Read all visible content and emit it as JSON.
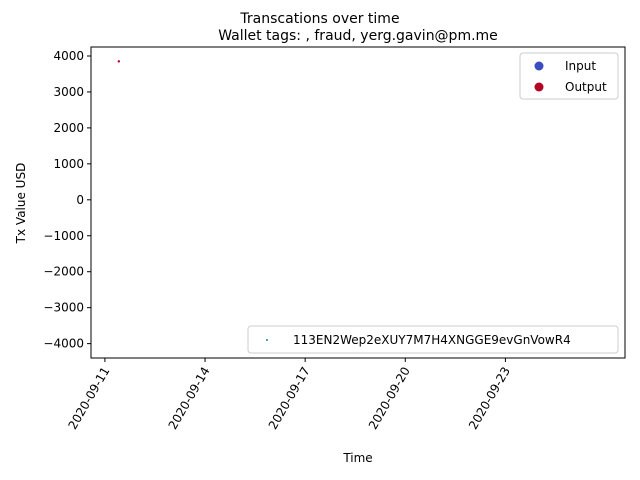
{
  "chart_data": {
    "type": "scatter",
    "suptitle": "Transcations over time",
    "title": "Wallet tags: , fraud, yerg.gavin@pm.me",
    "xlabel": "Time",
    "ylabel": "Tx Value USD",
    "x_axis": {
      "type": "date",
      "range": [
        "2020-09-10T14:00",
        "2020-09-26T14:00"
      ],
      "ticks": [
        "2020-09-11",
        "2020-09-14",
        "2020-09-17",
        "2020-09-20",
        "2020-09-23"
      ]
    },
    "y_axis": {
      "range": [
        -4400,
        4250
      ],
      "ticks": [
        4000,
        3000,
        2000,
        1000,
        0,
        -1000,
        -2000,
        -3000,
        -4000
      ],
      "tick_labels": [
        "4000",
        "3000",
        "2000",
        "1000",
        "0",
        "−1000",
        "−2000",
        "−3000",
        "−4000"
      ]
    },
    "grid": false,
    "series": [
      {
        "name": "Output",
        "color": "#b40426",
        "points": [
          {
            "x": "2020-09-11T10:00",
            "y": 3850
          }
        ]
      },
      {
        "name": "Input",
        "color": "#3b4cc0",
        "points": []
      }
    ],
    "legends": [
      {
        "placement": "top-right",
        "entries": [
          {
            "label": "Input",
            "color": "#3b4cc0",
            "marker": "large-dot"
          },
          {
            "label": "Output",
            "color": "#b40426",
            "marker": "large-dot"
          }
        ]
      },
      {
        "placement": "bottom-right",
        "entries": [
          {
            "label": "113EN2Wep2eXUY7M7H4XNGGE9evGnVowR4",
            "color": "#1f77b4",
            "marker": "small-dot"
          }
        ]
      }
    ]
  }
}
